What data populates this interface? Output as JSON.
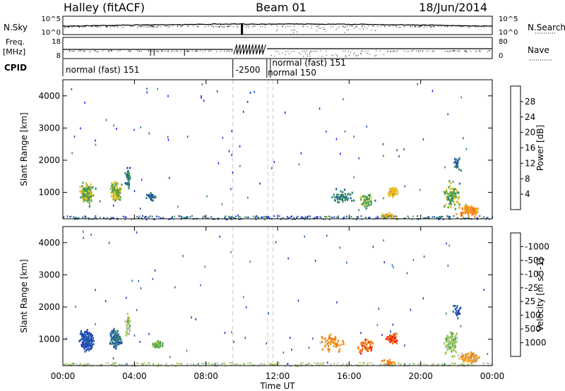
{
  "header": {
    "station": "Halley (fitACF)",
    "beam": "Beam 01",
    "date": "18/Jun/2014"
  },
  "status_panels": {
    "nsky_label": "N.Sky",
    "nsky_ticks": [
      "10^5",
      "10^0"
    ],
    "nsearch_label": "N.Search",
    "nsearch_ticks": [
      "10^5",
      "10^0"
    ],
    "freq_label": "Freq.",
    "freq_unit": "[MHz]",
    "freq_ticks": [
      "18",
      "8"
    ],
    "nave_label": "Nave",
    "nave_ticks": [
      "80",
      "0"
    ],
    "cpid_label": "CPID",
    "cpid_segments": [
      {
        "label": "normal (fast) 151",
        "start_h": 0.0,
        "end_h": 9.5
      },
      {
        "label": "-2500",
        "start_h": 9.5,
        "end_h": 11.4
      },
      {
        "label": "normal (fast) 151",
        "start_h": 11.4,
        "end_h": 24.0
      },
      {
        "label": "normal 150",
        "start_h": 11.6,
        "end_h": 11.8
      }
    ]
  },
  "chart_data": [
    {
      "type": "heatmap",
      "quantity": "Power",
      "ylabel": "Slant Range [km]",
      "ylim": [
        180,
        4500
      ],
      "yticks": [
        1000,
        2000,
        3000,
        4000
      ],
      "xlim": [
        0,
        24
      ],
      "colorbar_label": "Power [dB]",
      "colorbar_ticks": [
        "4",
        "8",
        "12",
        "16",
        "20",
        "24",
        "28"
      ],
      "colors": [
        "#1a1aff",
        "#1f4fa8",
        "#2f7e78",
        "#4aa04a",
        "#e8c020",
        "#f09020",
        "#ff6010",
        "#ee1010"
      ],
      "blobs": [
        {
          "t": 1.3,
          "r": 1000,
          "dt": 0.55,
          "dr": 450,
          "n": 140,
          "lvl": 3.2
        },
        {
          "t": 2.9,
          "r": 1050,
          "dt": 0.45,
          "dr": 380,
          "n": 110,
          "lvl": 3.5
        },
        {
          "t": 3.6,
          "r": 1500,
          "dt": 0.2,
          "dr": 500,
          "n": 40,
          "lvl": 2
        },
        {
          "t": 4.9,
          "r": 900,
          "dt": 0.35,
          "dr": 150,
          "n": 30,
          "lvl": 1.5
        },
        {
          "t": 15.6,
          "r": 900,
          "dt": 0.8,
          "dr": 300,
          "n": 50,
          "lvl": 2
        },
        {
          "t": 16.9,
          "r": 750,
          "dt": 0.6,
          "dr": 300,
          "n": 50,
          "lvl": 3
        },
        {
          "t": 18.4,
          "r": 1050,
          "dt": 0.4,
          "dr": 200,
          "n": 60,
          "lvl": 4.2
        },
        {
          "t": 18.2,
          "r": 300,
          "dt": 0.5,
          "dr": 120,
          "n": 30,
          "lvl": 4
        },
        {
          "t": 21.7,
          "r": 900,
          "dt": 0.6,
          "dr": 550,
          "n": 90,
          "lvl": 3.2
        },
        {
          "t": 22.7,
          "r": 450,
          "dt": 0.8,
          "dr": 250,
          "n": 90,
          "lvl": 5
        },
        {
          "t": 22.0,
          "r": 1900,
          "dt": 0.3,
          "dr": 300,
          "n": 20,
          "lvl": 1.5
        }
      ]
    },
    {
      "type": "heatmap",
      "quantity": "Velocity",
      "ylabel": "Slant Range [km]",
      "ylim": [
        180,
        4500
      ],
      "yticks": [
        1000,
        2000,
        3000,
        4000
      ],
      "xlim": [
        0,
        24
      ],
      "xlabel": "Time UT",
      "xticks": [
        "00:00",
        "04:00",
        "08:00",
        "12:00",
        "16:00",
        "20:00",
        "00:00"
      ],
      "colorbar_label": "Velocity [m s^-1]",
      "colorbar_ticks": [
        "1000",
        "500",
        "100",
        "25",
        "-25",
        "-100",
        "-500",
        "-1000"
      ],
      "colors": [
        "#1f30c0",
        "#2460a8",
        "#2f7e78",
        "#4aa04a",
        "#9acc50",
        "#bdbdbd",
        "#f0a020",
        "#f07010",
        "#ee1010"
      ],
      "blobs": [
        {
          "t": 1.3,
          "r": 1000,
          "dt": 0.55,
          "dr": 450,
          "n": 140,
          "lvl": 0.6
        },
        {
          "t": 2.9,
          "r": 1050,
          "dt": 0.45,
          "dr": 380,
          "n": 110,
          "lvl": 1.5
        },
        {
          "t": 3.6,
          "r": 1500,
          "dt": 0.2,
          "dr": 500,
          "n": 40,
          "lvl": 4.5
        },
        {
          "t": 5.3,
          "r": 850,
          "dt": 0.4,
          "dr": 150,
          "n": 40,
          "lvl": 3.3
        },
        {
          "t": 15.0,
          "r": 900,
          "dt": 0.9,
          "dr": 350,
          "n": 60,
          "lvl": 6.5
        },
        {
          "t": 16.9,
          "r": 800,
          "dt": 0.6,
          "dr": 300,
          "n": 50,
          "lvl": 7
        },
        {
          "t": 18.4,
          "r": 1050,
          "dt": 0.45,
          "dr": 200,
          "n": 70,
          "lvl": 7.3
        },
        {
          "t": 18.2,
          "r": 300,
          "dt": 0.5,
          "dr": 120,
          "n": 30,
          "lvl": 6.5
        },
        {
          "t": 21.7,
          "r": 900,
          "dt": 0.6,
          "dr": 550,
          "n": 90,
          "lvl": 4
        },
        {
          "t": 22.7,
          "r": 450,
          "dt": 0.8,
          "dr": 250,
          "n": 90,
          "lvl": 6.2
        },
        {
          "t": 22.0,
          "r": 1900,
          "dt": 0.3,
          "dr": 300,
          "n": 20,
          "lvl": 1
        }
      ]
    }
  ]
}
